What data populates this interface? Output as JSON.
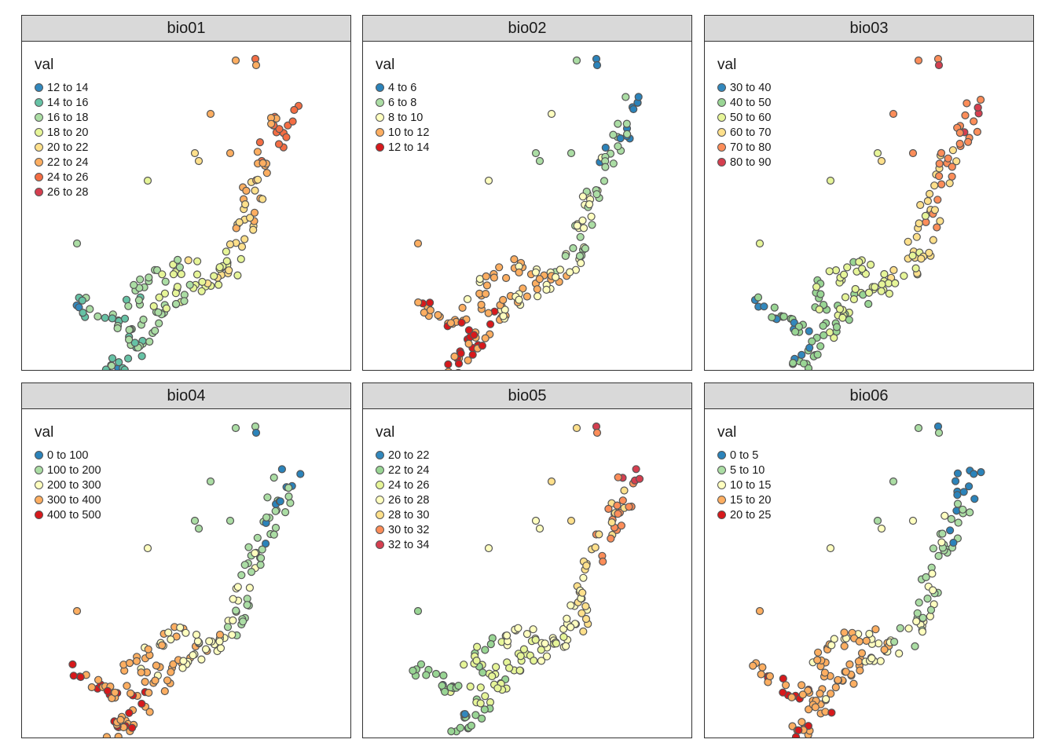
{
  "figure": {
    "legend_title": "val",
    "panels": [
      {
        "title": "bio01",
        "legend": [
          {
            "label": "12 to 14",
            "color": "#3288bd"
          },
          {
            "label": "14 to 16",
            "color": "#66c2a5"
          },
          {
            "label": "16 to 18",
            "color": "#abdda4"
          },
          {
            "label": "18 to 20",
            "color": "#e6f598"
          },
          {
            "label": "20 to 22",
            "color": "#fee08b"
          },
          {
            "label": "22 to 24",
            "color": "#fdae61"
          },
          {
            "label": "24 to 26",
            "color": "#f46d43"
          },
          {
            "label": "26 to 28",
            "color": "#d53e4f"
          }
        ]
      },
      {
        "title": "bio02",
        "legend": [
          {
            "label": "4 to 6",
            "color": "#2b83ba"
          },
          {
            "label": "6 to 8",
            "color": "#abdda4"
          },
          {
            "label": "8 to 10",
            "color": "#ffffbf"
          },
          {
            "label": "10 to 12",
            "color": "#fdae61"
          },
          {
            "label": "12 to 14",
            "color": "#d7191c"
          }
        ]
      },
      {
        "title": "bio03",
        "legend": [
          {
            "label": "30 to 40",
            "color": "#3288bd"
          },
          {
            "label": "40 to 50",
            "color": "#99d594"
          },
          {
            "label": "50 to 60",
            "color": "#e6f598"
          },
          {
            "label": "60 to 70",
            "color": "#fee08b"
          },
          {
            "label": "70 to 80",
            "color": "#fc8d59"
          },
          {
            "label": "80 to 90",
            "color": "#d53e4f"
          }
        ]
      },
      {
        "title": "bio04",
        "legend": [
          {
            "label": "0 to 100",
            "color": "#2b83ba"
          },
          {
            "label": "100 to 200",
            "color": "#abdda4"
          },
          {
            "label": "200 to 300",
            "color": "#ffffbf"
          },
          {
            "label": "300 to 400",
            "color": "#fdae61"
          },
          {
            "label": "400 to 500",
            "color": "#d7191c"
          }
        ]
      },
      {
        "title": "bio05",
        "legend": [
          {
            "label": "20 to 22",
            "color": "#3288bd"
          },
          {
            "label": "22 to 24",
            "color": "#99d594"
          },
          {
            "label": "24 to 26",
            "color": "#e6f598"
          },
          {
            "label": "26 to 28",
            "color": "#ffffbf"
          },
          {
            "label": "28 to 30",
            "color": "#fee08b"
          },
          {
            "label": "30 to 32",
            "color": "#fc8d59"
          },
          {
            "label": "32 to 34",
            "color": "#d53e4f"
          }
        ]
      },
      {
        "title": "bio06",
        "legend": [
          {
            "label": "0 to 5",
            "color": "#2b83ba"
          },
          {
            "label": "5 to 10",
            "color": "#abdda4"
          },
          {
            "label": "10 to 15",
            "color": "#ffffbf"
          },
          {
            "label": "15 to 20",
            "color": "#fdae61"
          },
          {
            "label": "20 to 25",
            "color": "#d7191c"
          }
        ]
      }
    ]
  }
}
